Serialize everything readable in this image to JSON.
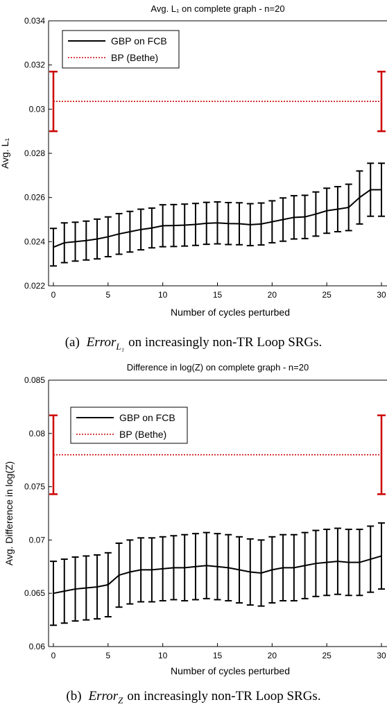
{
  "chart_data": [
    {
      "type": "line",
      "title": "Avg. L₁ on complete graph - n=20",
      "xlabel": "Number of cycles perturbed",
      "ylabel": "Avg. L₁",
      "xlim": [
        0,
        30
      ],
      "ylim": [
        0.022,
        0.034
      ],
      "xticks": [
        "0",
        "5",
        "10",
        "15",
        "20",
        "25",
        "30"
      ],
      "yticks": [
        "0.022",
        "0.024",
        "0.026",
        "0.028",
        "0.03",
        "0.032",
        "0.034"
      ],
      "grid": false,
      "legend_position": "top-left",
      "caption": {
        "prefix": "(a)",
        "math_base": "Error",
        "math_sub": "L₁",
        "text": "on increasingly non-TR Loop SRGs."
      },
      "series": [
        {
          "name": "GBP on FCB",
          "color": "#000000",
          "style": "solid",
          "x": [
            0,
            1,
            2,
            3,
            4,
            5,
            6,
            7,
            8,
            9,
            10,
            11,
            12,
            13,
            14,
            15,
            16,
            17,
            18,
            19,
            20,
            21,
            22,
            23,
            24,
            25,
            26,
            27,
            28,
            29,
            30
          ],
          "y": [
            0.02375,
            0.02395,
            0.024,
            0.02405,
            0.02412,
            0.02422,
            0.02435,
            0.02445,
            0.02455,
            0.02462,
            0.02472,
            0.02473,
            0.02475,
            0.02478,
            0.02483,
            0.02485,
            0.02482,
            0.02481,
            0.02477,
            0.0248,
            0.0249,
            0.025,
            0.0251,
            0.02512,
            0.02525,
            0.0254,
            0.02547,
            0.02555,
            0.026,
            0.02635,
            0.02635
          ],
          "err": [
            0.00085,
            0.0009,
            0.00088,
            0.00088,
            0.0009,
            0.0009,
            0.00092,
            0.00092,
            0.00092,
            0.0009,
            0.00095,
            0.00095,
            0.00095,
            0.00095,
            0.00095,
            0.00095,
            0.00095,
            0.00095,
            0.00095,
            0.00095,
            0.00095,
            0.00098,
            0.00098,
            0.00098,
            0.001,
            0.00102,
            0.00102,
            0.00105,
            0.0012,
            0.0012,
            0.0012
          ]
        },
        {
          "name": "BP (Bethe)",
          "color": "#cc0000",
          "style": "dotted",
          "x": [
            0,
            30
          ],
          "y": [
            0.03035,
            0.03035
          ],
          "err": [
            0.00135,
            0.00135
          ]
        }
      ]
    },
    {
      "type": "line",
      "title": "Difference in log(Z) on complete graph - n=20",
      "xlabel": "Number of cycles perturbed",
      "ylabel": "Avg. Difference in log(Z)",
      "xlim": [
        0,
        30
      ],
      "ylim": [
        0.06,
        0.085
      ],
      "xticks": [
        "0",
        "5",
        "10",
        "15",
        "20",
        "25",
        "30"
      ],
      "yticks": [
        "0.06",
        "0.065",
        "0.07",
        "0.075",
        "0.08",
        "0.085"
      ],
      "grid": false,
      "legend_position": "top-left",
      "caption": {
        "prefix": "(b)",
        "math_base": "Error",
        "math_sub": "Z",
        "text": "on increasingly non-TR Loop SRGs."
      },
      "series": [
        {
          "name": "GBP on FCB",
          "color": "#000000",
          "style": "solid",
          "x": [
            0,
            1,
            2,
            3,
            4,
            5,
            6,
            7,
            8,
            9,
            10,
            11,
            12,
            13,
            14,
            15,
            16,
            17,
            18,
            19,
            20,
            21,
            22,
            23,
            24,
            25,
            26,
            27,
            28,
            29,
            30
          ],
          "y": [
            0.065,
            0.0652,
            0.0654,
            0.0655,
            0.0656,
            0.0658,
            0.0667,
            0.067,
            0.0672,
            0.0672,
            0.0673,
            0.0674,
            0.0674,
            0.0675,
            0.0676,
            0.0675,
            0.0674,
            0.0672,
            0.067,
            0.0669,
            0.0672,
            0.0674,
            0.0674,
            0.0676,
            0.0678,
            0.0679,
            0.068,
            0.0679,
            0.0679,
            0.0682,
            0.0685
          ],
          "err": [
            0.003,
            0.003,
            0.003,
            0.003,
            0.003,
            0.003,
            0.003,
            0.003,
            0.003,
            0.003,
            0.003,
            0.003,
            0.0031,
            0.0031,
            0.0031,
            0.0031,
            0.0031,
            0.0031,
            0.0031,
            0.0031,
            0.0031,
            0.0031,
            0.0031,
            0.0031,
            0.0031,
            0.0031,
            0.0031,
            0.0031,
            0.0031,
            0.0031,
            0.0031
          ]
        },
        {
          "name": "BP (Bethe)",
          "color": "#cc0000",
          "style": "dotted",
          "x": [
            0,
            30
          ],
          "y": [
            0.078,
            0.078
          ],
          "err": [
            0.0037,
            0.0037
          ]
        }
      ]
    }
  ]
}
